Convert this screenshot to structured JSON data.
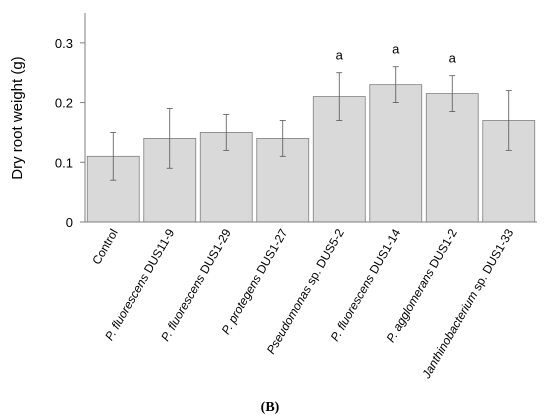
{
  "chart_data": {
    "type": "bar",
    "title": "",
    "xlabel": "",
    "ylabel": "Dry root weight (g)",
    "ylim": [
      0,
      0.35
    ],
    "yticks": [
      "0",
      "0.1",
      "0.2",
      "0.3"
    ],
    "ytick_values": [
      0,
      0.1,
      0.2,
      0.3
    ],
    "grid": false,
    "panel_label": "(B)",
    "bar_color": "#d9d9d9",
    "bar_edge_color": "#7f7f7f",
    "categories": [
      {
        "prefix": "",
        "italic": "",
        "suffix": "Control"
      },
      {
        "prefix": "",
        "italic": "P. fluorescens",
        "suffix": " DUS11-9"
      },
      {
        "prefix": "",
        "italic": "P. fluorescens",
        "suffix": " DUS1-29"
      },
      {
        "prefix": "",
        "italic": "P. protegens",
        "suffix": " DUS1-27"
      },
      {
        "prefix": "",
        "italic": "Pseudomonas",
        "suffix": " sp. DUS5-2"
      },
      {
        "prefix": "",
        "italic": "P. fluorescens",
        "suffix": " DUS1-14"
      },
      {
        "prefix": "",
        "italic": "P. agglomerans",
        "suffix": " DUS1-2"
      },
      {
        "prefix": "",
        "italic": "Janthinobacterium",
        "suffix": " sp. DUS1-33"
      }
    ],
    "values": [
      0.11,
      0.14,
      0.15,
      0.14,
      0.21,
      0.23,
      0.215,
      0.17
    ],
    "errors": [
      0.04,
      0.05,
      0.03,
      0.03,
      0.04,
      0.03,
      0.03,
      0.05
    ],
    "significance": [
      "",
      "",
      "",
      "",
      "a",
      "a",
      "a",
      ""
    ]
  }
}
